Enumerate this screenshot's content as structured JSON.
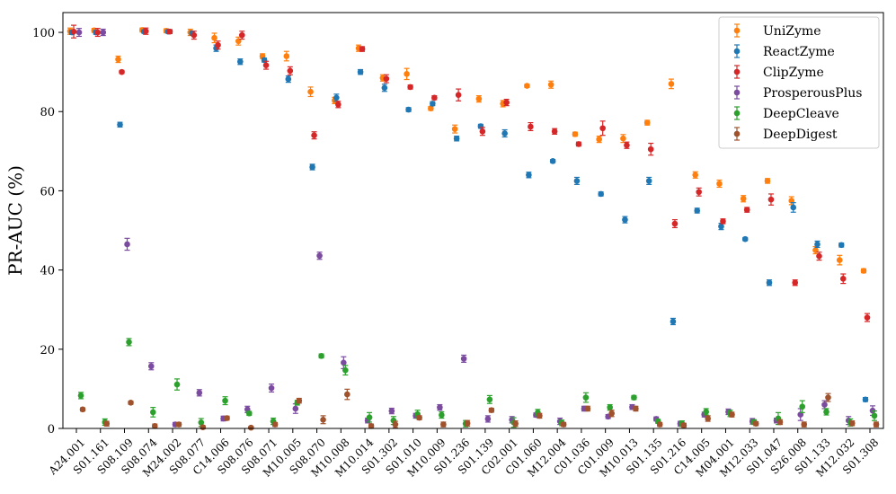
{
  "chart_data": {
    "type": "scatter",
    "ylabel": "PR-AUC (%)",
    "xlabel": "",
    "ylim": [
      0,
      105
    ],
    "yticks": [
      0,
      20,
      40,
      60,
      80,
      100
    ],
    "legend_position": "top-right",
    "grid": false,
    "categories": [
      "A24.001",
      "S01.161",
      "S08.109",
      "S08.074",
      "M24.002",
      "S08.077",
      "C14.006",
      "S08.076",
      "S08.071",
      "M10.005",
      "S08.070",
      "M10.008",
      "M10.014",
      "S01.302",
      "S01.010",
      "M10.009",
      "S01.236",
      "S01.139",
      "C02.001",
      "C01.060",
      "M12.004",
      "C01.036",
      "C01.009",
      "M10.013",
      "S01.135",
      "S01.216",
      "C14.005",
      "M04.001",
      "M12.033",
      "S01.047",
      "S26.008",
      "S01.133",
      "M12.032",
      "S01.308"
    ],
    "series": [
      {
        "name": "UniZyme",
        "color": "#ff7f0e",
        "values": [
          100.3,
          100.5,
          93.2,
          100.6,
          100.4,
          100.0,
          98.6,
          97.8,
          94.0,
          94.0,
          85.0,
          82.8,
          96.0,
          88.5,
          89.5,
          80.8,
          75.6,
          83.2,
          82.0,
          86.5,
          86.8,
          74.3,
          73.0,
          73.2,
          77.2,
          87.0,
          64.0,
          61.8,
          58.0,
          62.5,
          57.5,
          45.0,
          42.5,
          39.8
        ],
        "errors": [
          0.8,
          0.5,
          0.8,
          0.5,
          0.5,
          0.8,
          1.2,
          1.0,
          0.6,
          1.2,
          1.2,
          0.8,
          0.8,
          0.8,
          1.4,
          0.5,
          1.0,
          0.8,
          0.8,
          0.4,
          0.9,
          0.5,
          0.8,
          1.0,
          0.6,
          1.2,
          0.8,
          0.9,
          0.8,
          0.6,
          1.0,
          0.9,
          1.2,
          0.5
        ]
      },
      {
        "name": "ReactZyme",
        "color": "#1f77b4",
        "values": [
          100.0,
          100.0,
          76.7,
          100.2,
          100.2,
          99.8,
          96.0,
          92.6,
          93.0,
          88.2,
          66.0,
          83.5,
          90.0,
          86.0,
          80.5,
          82.0,
          73.2,
          76.3,
          74.5,
          64.0,
          67.5,
          62.5,
          59.2,
          52.7,
          62.5,
          27.0,
          55.0,
          51.0,
          47.8,
          36.8,
          55.8,
          46.5,
          46.3,
          7.3
        ],
        "errors": [
          0.5,
          0.5,
          0.6,
          0.4,
          0.4,
          0.5,
          0.8,
          0.7,
          0.5,
          0.8,
          0.7,
          0.9,
          0.6,
          0.9,
          0.5,
          0.5,
          0.6,
          0.5,
          0.9,
          0.7,
          0.4,
          0.9,
          0.5,
          0.8,
          0.9,
          0.8,
          0.6,
          0.8,
          0.4,
          0.7,
          1.2,
          0.8,
          0.5,
          0.5
        ]
      },
      {
        "name": "ClipZyme",
        "color": "#d62728",
        "values": [
          100.2,
          100.0,
          90.0,
          100.3,
          100.2,
          99.3,
          96.8,
          99.3,
          91.7,
          90.3,
          74.0,
          81.8,
          95.8,
          88.3,
          86.2,
          83.5,
          84.2,
          75.0,
          82.3,
          76.2,
          75.0,
          71.8,
          75.8,
          71.5,
          70.5,
          51.7,
          59.7,
          52.3,
          55.2,
          57.8,
          36.8,
          43.5,
          37.8,
          28.0
        ],
        "errors": [
          1.6,
          1.0,
          0.4,
          0.8,
          0.5,
          1.0,
          1.0,
          1.0,
          1.0,
          1.0,
          0.9,
          0.8,
          0.6,
          1.0,
          0.5,
          0.5,
          1.5,
          1.0,
          0.8,
          1.0,
          0.7,
          0.5,
          1.8,
          0.8,
          1.5,
          1.0,
          1.0,
          0.6,
          0.6,
          1.4,
          0.7,
          1.0,
          1.2,
          1.0
        ]
      },
      {
        "name": "ProsperousPlus",
        "color": "#7b4ba0",
        "values": [
          100.0,
          100.0,
          46.5,
          15.7,
          1.0,
          9.0,
          2.5,
          4.8,
          10.2,
          5.0,
          43.6,
          16.6,
          2.0,
          4.4,
          3.2,
          5.3,
          17.6,
          2.4,
          2.2,
          3.4,
          1.8,
          5.0,
          3.0,
          5.4,
          2.4,
          1.2,
          3.5,
          4.2,
          1.8,
          2.0,
          3.5,
          6.0,
          2.0,
          4.5
        ],
        "errors": [
          1.0,
          0.8,
          1.5,
          0.9,
          0.5,
          0.8,
          0.6,
          0.8,
          1.0,
          1.2,
          0.9,
          1.5,
          0.6,
          0.7,
          0.6,
          0.7,
          0.9,
          0.8,
          0.8,
          0.5,
          0.8,
          0.6,
          0.5,
          0.6,
          0.5,
          0.6,
          0.6,
          0.7,
          0.7,
          0.6,
          1.5,
          1.0,
          1.0,
          1.2
        ]
      },
      {
        "name": "DeepCleave",
        "color": "#2ca02c",
        "values": [
          8.3,
          1.6,
          21.8,
          4.1,
          11.1,
          1.5,
          7.0,
          3.8,
          1.8,
          6.5,
          18.3,
          14.7,
          2.8,
          2.0,
          3.6,
          3.4,
          1.2,
          7.3,
          1.5,
          4.0,
          1.4,
          7.8,
          5.3,
          7.8,
          1.8,
          1.2,
          4.2,
          3.8,
          1.6,
          2.5,
          5.5,
          4.2,
          1.5,
          3.2
        ],
        "errors": [
          0.8,
          0.8,
          0.9,
          1.2,
          1.4,
          1.0,
          1.0,
          0.5,
          0.8,
          0.6,
          0.5,
          1.2,
          1.2,
          1.0,
          1.0,
          0.8,
          0.8,
          1.0,
          1.2,
          0.8,
          0.7,
          1.2,
          0.7,
          0.5,
          0.5,
          0.7,
          0.8,
          0.8,
          0.6,
          1.5,
          1.5,
          0.8,
          0.9,
          1.2
        ]
      },
      {
        "name": "DeepDigest",
        "color": "#a0522d",
        "values": [
          4.8,
          1.2,
          6.5,
          0.6,
          1.0,
          0.3,
          2.6,
          0.2,
          1.0,
          7.0,
          2.2,
          8.6,
          0.6,
          1.0,
          2.7,
          1.0,
          1.3,
          4.6,
          1.2,
          3.2,
          1.0,
          5.0,
          3.8,
          5.0,
          1.0,
          0.8,
          2.5,
          3.5,
          1.2,
          1.6,
          1.0,
          7.8,
          1.3,
          1.0
        ],
        "errors": [
          0.4,
          0.6,
          0.4,
          0.5,
          0.5,
          0.4,
          0.5,
          0.3,
          0.5,
          0.6,
          1.0,
          1.3,
          0.5,
          0.8,
          0.5,
          0.6,
          0.7,
          0.5,
          0.7,
          0.6,
          0.5,
          0.6,
          0.8,
          0.6,
          0.5,
          0.5,
          0.7,
          0.6,
          0.5,
          0.6,
          0.6,
          1.0,
          0.6,
          0.6
        ]
      }
    ]
  }
}
